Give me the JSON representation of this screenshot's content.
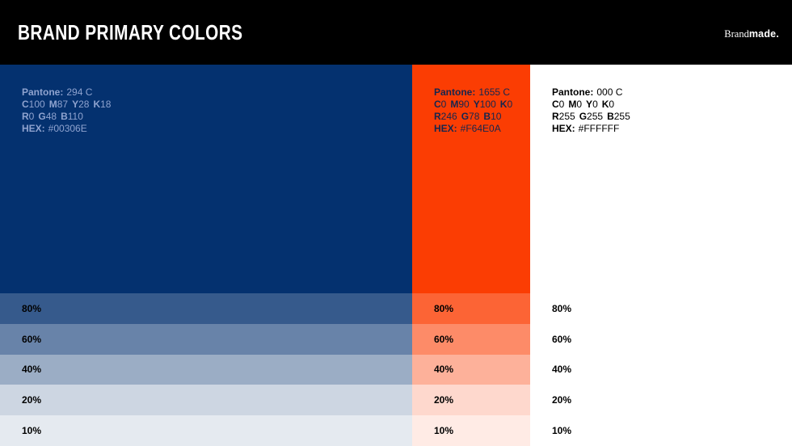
{
  "header": {
    "title": "BRAND PRIMARY COLORS",
    "logo_part1": "Brand",
    "logo_part2": "made."
  },
  "tints": [
    {
      "label": "80%",
      "alpha": 0.8
    },
    {
      "label": "60%",
      "alpha": 0.6
    },
    {
      "label": "40%",
      "alpha": 0.4
    },
    {
      "label": "20%",
      "alpha": 0.2
    },
    {
      "label": "10%",
      "alpha": 0.1
    }
  ],
  "columns": [
    {
      "name": "navy",
      "fill": "#04316F",
      "pantone_label": "Pantone:",
      "pantone_value": "294 C",
      "cmyk": [
        {
          "l": "C",
          "v": "100"
        },
        {
          "l": "M",
          "v": "87"
        },
        {
          "l": "Y",
          "v": "28"
        },
        {
          "l": "K",
          "v": "18"
        }
      ],
      "rgb": [
        {
          "l": "R",
          "v": "0"
        },
        {
          "l": "G",
          "v": "48"
        },
        {
          "l": "B",
          "v": "110"
        }
      ],
      "hex_label": "HEX:",
      "hex_value": "#00306E"
    },
    {
      "name": "orange",
      "fill": "#FB3D03",
      "pantone_label": "Pantone:",
      "pantone_value": "1655 C",
      "cmyk": [
        {
          "l": "C",
          "v": "0"
        },
        {
          "l": "M",
          "v": "90"
        },
        {
          "l": "Y",
          "v": "100"
        },
        {
          "l": "K",
          "v": "0"
        }
      ],
      "rgb": [
        {
          "l": "R",
          "v": "246"
        },
        {
          "l": "G",
          "v": "78"
        },
        {
          "l": "B",
          "v": "10"
        }
      ],
      "hex_label": "HEX:",
      "hex_value": "#F64E0A"
    },
    {
      "name": "white",
      "fill": "#FFFFFF",
      "pantone_label": "Pantone:",
      "pantone_value": "000 C",
      "cmyk": [
        {
          "l": "C",
          "v": "0"
        },
        {
          "l": "M",
          "v": "0"
        },
        {
          "l": "Y",
          "v": "0"
        },
        {
          "l": "K",
          "v": "0"
        }
      ],
      "rgb": [
        {
          "l": "R",
          "v": "255"
        },
        {
          "l": "G",
          "v": "255"
        },
        {
          "l": "B",
          "v": "255"
        }
      ],
      "hex_label": "HEX:",
      "hex_value": "#FFFFFF"
    }
  ]
}
